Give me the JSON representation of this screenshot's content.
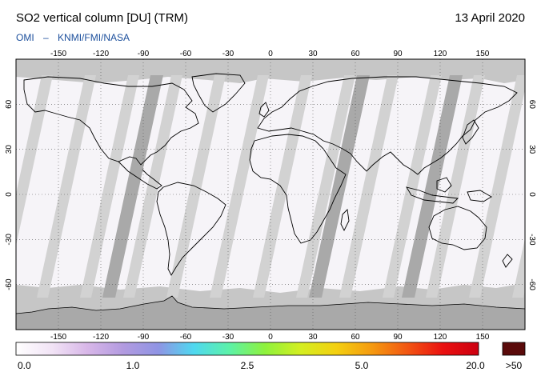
{
  "header": {
    "title": "SO2 vertical column [DU] (TRM)",
    "date": "13 April 2020",
    "credit_left": "OMI",
    "credit_sep": "–",
    "credit_right": "KNMI/FMI/NASA"
  },
  "map": {
    "lon_ticks": [
      -150,
      -120,
      -90,
      -60,
      -30,
      0,
      30,
      60,
      90,
      120,
      150
    ],
    "lat_ticks": [
      60,
      30,
      0,
      -30,
      -60
    ],
    "lon_range": [
      -180,
      180
    ],
    "lat_range": [
      -90,
      90
    ],
    "colors": {
      "background": "#f6f4f8",
      "swath_gap": "#d2d2d2",
      "polar": "#c6c6c6",
      "antarctica": "#a9a9a9",
      "dark_swath": "#a9a9a9",
      "coast": "#000000"
    }
  },
  "colorbar": {
    "labels": [
      "0.0",
      "1.0",
      "2.5",
      "5.0",
      "20.0",
      ">50"
    ],
    "stops": [
      "#ffffff",
      "#f2e4f6",
      "#d8b7e8",
      "#b39be0",
      "#8f94e4",
      "#4fd8f0",
      "#5cf2a8",
      "#8ef23c",
      "#d4ee20",
      "#f4d010",
      "#f59a10",
      "#f25612",
      "#ea1010",
      "#cc0010"
    ],
    "overflow_color": "#5a0a0a"
  }
}
